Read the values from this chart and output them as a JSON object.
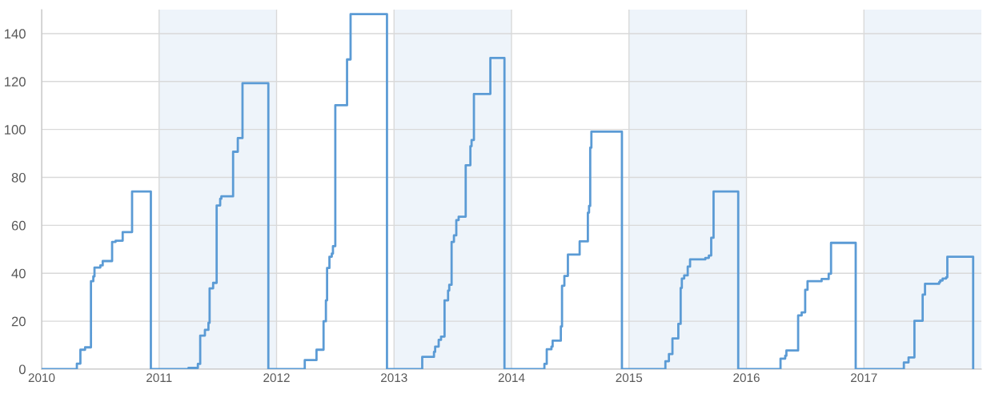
{
  "chart_data": {
    "type": "step",
    "x": [
      2010.0,
      2010.3,
      2010.33,
      2010.37,
      2010.42,
      2010.44,
      2010.45,
      2010.5,
      2010.52,
      2010.6,
      2010.63,
      2010.69,
      2010.77,
      2010.93,
      2011.25,
      2011.33,
      2011.35,
      2011.39,
      2011.42,
      2011.43,
      2011.46,
      2011.49,
      2011.52,
      2011.53,
      2011.63,
      2011.67,
      2011.71,
      2011.93,
      2012.24,
      2012.34,
      2012.4,
      2012.42,
      2012.43,
      2012.45,
      2012.47,
      2012.48,
      2012.5,
      2012.6,
      2012.63,
      2012.94,
      2013.24,
      2013.34,
      2013.35,
      2013.38,
      2013.4,
      2013.43,
      2013.46,
      2013.47,
      2013.49,
      2013.51,
      2013.53,
      2013.55,
      2013.61,
      2013.65,
      2013.66,
      2013.68,
      2013.82,
      2013.94,
      2014.28,
      2014.3,
      2014.34,
      2014.35,
      2014.42,
      2014.43,
      2014.45,
      2014.48,
      2014.58,
      2014.65,
      2014.66,
      2014.67,
      2014.68,
      2014.94,
      2015.31,
      2015.34,
      2015.37,
      2015.42,
      2015.44,
      2015.45,
      2015.47,
      2015.5,
      2015.52,
      2015.65,
      2015.68,
      2015.7,
      2015.72,
      2015.93,
      2016.29,
      2016.33,
      2016.34,
      2016.44,
      2016.47,
      2016.5,
      2016.52,
      2016.64,
      2016.7,
      2016.72,
      2016.93,
      2017.34,
      2017.38,
      2017.43,
      2017.5,
      2017.52,
      2017.64,
      2017.65,
      2017.67,
      2017.7,
      2017.71,
      2017.93
    ],
    "series": [
      {
        "color": "#5b9bd5",
        "values": [
          0,
          2.3,
          8.1,
          9.1,
          36.7,
          38.7,
          42.4,
          43.3,
          45.1,
          53.1,
          53.6,
          57.2,
          74.1,
          0,
          0.5,
          2.2,
          14,
          16.4,
          19.3,
          33.7,
          36,
          68.3,
          71.1,
          72.1,
          90.7,
          96.4,
          119.3,
          0,
          3.8,
          8.1,
          20,
          28.7,
          42.2,
          46.9,
          48.2,
          51.3,
          110.1,
          129.2,
          148.1,
          0,
          5.1,
          7.2,
          9.4,
          12.2,
          13.6,
          28.7,
          32.8,
          35.2,
          53.1,
          55.8,
          62.2,
          63.6,
          85.1,
          93,
          95.6,
          114.8,
          129.8,
          0,
          2.2,
          8.3,
          9.4,
          11.9,
          17.8,
          34.8,
          38.9,
          47.8,
          53.3,
          65.3,
          68.1,
          92.4,
          99.1,
          0,
          3.3,
          6.3,
          12.8,
          18.9,
          33.9,
          37.8,
          39.1,
          42.8,
          45.8,
          46.4,
          47.4,
          54.8,
          74.1,
          0,
          4.4,
          5.6,
          7.8,
          22.4,
          23.7,
          33.1,
          36.7,
          37.6,
          39.8,
          52.7,
          0,
          2.8,
          4.9,
          20.2,
          31.1,
          35.6,
          36.3,
          37,
          37.8,
          38.3,
          46.9,
          0
        ]
      }
    ],
    "xlim": [
      2010,
      2018
    ],
    "xticks": [
      2010,
      2011,
      2012,
      2013,
      2014,
      2015,
      2016,
      2017
    ],
    "ylim": [
      0,
      150
    ],
    "yticks": [
      0,
      20,
      40,
      60,
      80,
      100,
      120,
      140
    ],
    "bands": [
      {
        "axis": "x",
        "from": 2011,
        "to": 2012,
        "color": "#eef4fa"
      },
      {
        "axis": "x",
        "from": 2013,
        "to": 2014,
        "color": "#eef4fa"
      },
      {
        "axis": "x",
        "from": 2015,
        "to": 2016,
        "color": "#eef4fa"
      },
      {
        "axis": "x",
        "from": 2017,
        "to": 2018,
        "color": "#eef4fa"
      }
    ],
    "grid": true,
    "legend": false
  }
}
